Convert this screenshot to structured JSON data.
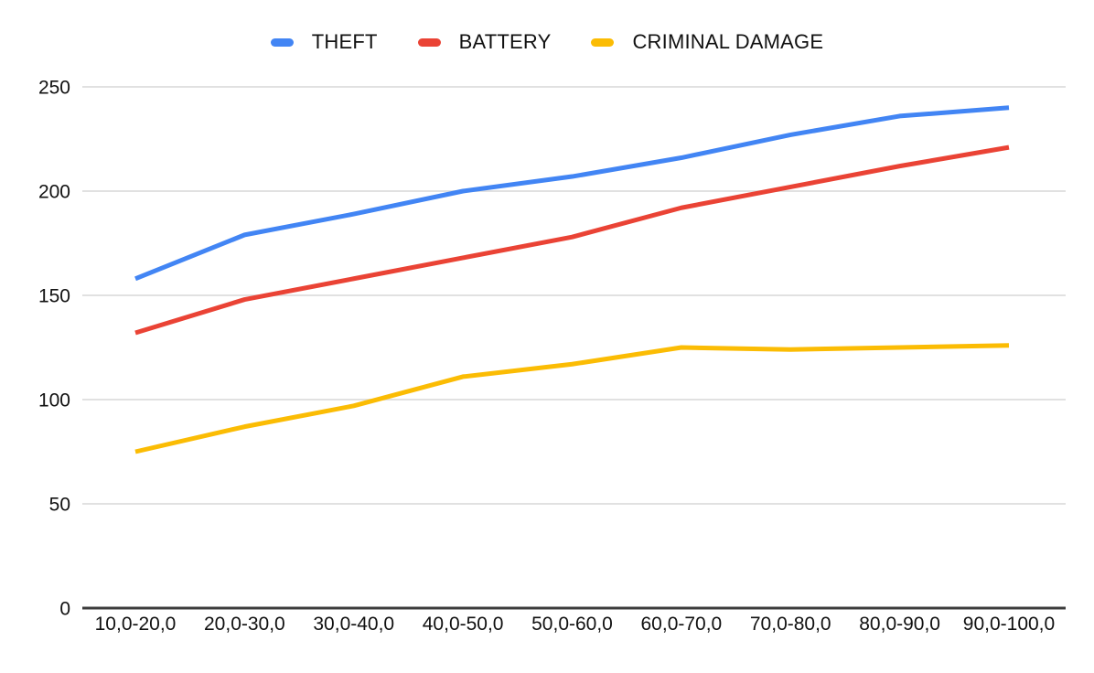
{
  "chart_data": {
    "type": "line",
    "title": "",
    "categories": [
      "10,0-20,0",
      "20,0-30,0",
      "30,0-40,0",
      "40,0-50,0",
      "50,0-60,0",
      "60,0-70,0",
      "70,0-80,0",
      "80,0-90,0",
      "90,0-100,0"
    ],
    "series": [
      {
        "name": "THEFT",
        "color": "#4285F4",
        "values": [
          158,
          179,
          189,
          200,
          207,
          216,
          227,
          236,
          240
        ]
      },
      {
        "name": "BATTERY",
        "color": "#EA4335",
        "values": [
          132,
          148,
          158,
          168,
          178,
          192,
          202,
          212,
          221
        ]
      },
      {
        "name": "CRIMINAL DAMAGE",
        "color": "#FBBC04",
        "values": [
          75,
          87,
          97,
          111,
          117,
          125,
          124,
          125,
          126
        ]
      }
    ],
    "xlabel": "",
    "ylabel": "",
    "ylim": [
      0,
      250
    ],
    "y_ticks": [
      0,
      50,
      100,
      150,
      200,
      250
    ],
    "grid": true,
    "legend_position": "top"
  },
  "colors": {
    "background": "#FFFFFF",
    "gridline": "#E1E1E1",
    "axis_line": "#3C3C3C",
    "label_text": "#111111"
  }
}
